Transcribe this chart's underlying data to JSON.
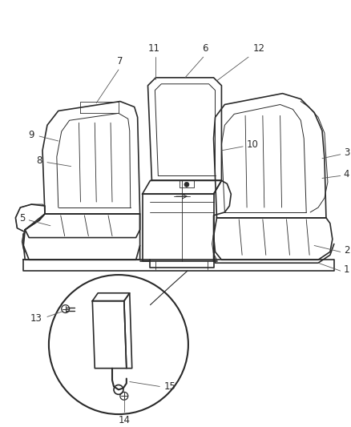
{
  "background_color": "#ffffff",
  "line_color": "#2a2a2a",
  "label_color": "#2a2a2a",
  "label_fontsize": 8.5,
  "figsize": [
    4.38,
    5.33
  ],
  "dpi": 100
}
